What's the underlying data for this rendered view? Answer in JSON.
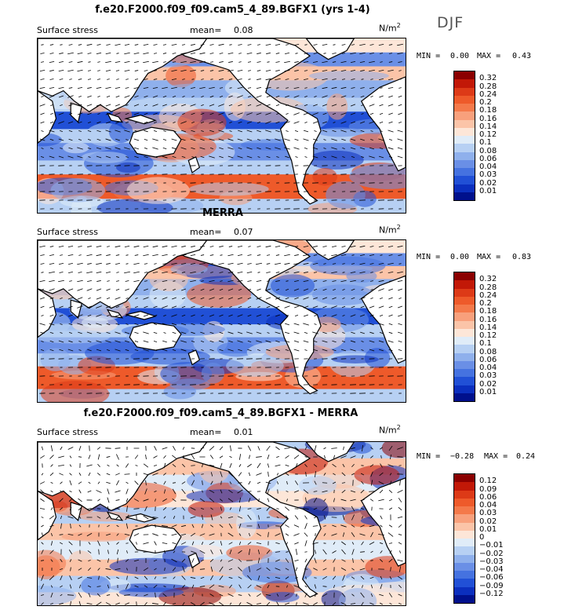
{
  "season": "DJF",
  "panels": [
    {
      "title": "f.e20.F2000.f09_f09.cam5_4_89.BGFX1 (yrs 1-4)",
      "variable": "Surface stress",
      "mean_label": "mean=",
      "mean": "0.08",
      "units": "N/m",
      "units_sup": "2",
      "min_label": "MIN =",
      "min": "0.00",
      "max_label": "MAX =",
      "max": "0.43",
      "levels": [
        "0.32",
        "0.28",
        "0.24",
        "0.2",
        "0.18",
        "0.16",
        "0.14",
        "0.12",
        "0.1",
        "0.08",
        "0.06",
        "0.04",
        "0.03",
        "0.02",
        "0.01"
      ],
      "colors": [
        "#8b0000",
        "#c21807",
        "#dd3a17",
        "#ee5a2a",
        "#f4794a",
        "#f8a07c",
        "#fbc4a8",
        "#fde6d8",
        "#e0ecf8",
        "#b7d0f3",
        "#8fb0ec",
        "#6a8fe6",
        "#4572e0",
        "#2150d6",
        "#0b2fbe",
        "#00108c"
      ]
    },
    {
      "title": "MERRA",
      "variable": "Surface stress",
      "mean_label": "mean=",
      "mean": "0.07",
      "units": "N/m",
      "units_sup": "2",
      "min_label": "MIN =",
      "min": "0.00",
      "max_label": "MAX =",
      "max": "0.83",
      "levels": [
        "0.32",
        "0.28",
        "0.24",
        "0.2",
        "0.18",
        "0.16",
        "0.14",
        "0.12",
        "0.1",
        "0.08",
        "0.06",
        "0.04",
        "0.03",
        "0.02",
        "0.01"
      ],
      "colors": [
        "#8b0000",
        "#c21807",
        "#dd3a17",
        "#ee5a2a",
        "#f4794a",
        "#f8a07c",
        "#fbc4a8",
        "#fde6d8",
        "#e0ecf8",
        "#b7d0f3",
        "#8fb0ec",
        "#6a8fe6",
        "#4572e0",
        "#2150d6",
        "#0b2fbe",
        "#00108c"
      ]
    },
    {
      "title": "f.e20.F2000.f09_f09.cam5_4_89.BGFX1 - MERRA",
      "variable": "Surface stress",
      "mean_label": "mean=",
      "mean": "0.01",
      "units": "N/m",
      "units_sup": "2",
      "min_label": "MIN =",
      "min": "−0.28",
      "max_label": "MAX =",
      "max": "0.24",
      "levels": [
        "0.12",
        "0.09",
        "0.06",
        "0.04",
        "0.03",
        "0.02",
        "0.01",
        "0",
        "−0.01",
        "−0.02",
        "−0.03",
        "−0.04",
        "−0.06",
        "−0.09",
        "−0.12"
      ],
      "colors": [
        "#8b0000",
        "#c21807",
        "#dd3a17",
        "#ee5a2a",
        "#f4794a",
        "#f8a07c",
        "#fbc4a8",
        "#fde6d8",
        "#e0ecf8",
        "#b7d0f3",
        "#8fb0ec",
        "#6a8fe6",
        "#4572e0",
        "#2150d6",
        "#0b2fbe",
        "#00108c"
      ]
    }
  ],
  "chart_data": [
    {
      "type": "heatmap",
      "title": "f.e20.F2000.f09_f09.cam5_4_89.BGFX1 (yrs 1-4)",
      "field": "Surface stress",
      "units": "N/m2",
      "mean": 0.08,
      "min": 0.0,
      "max": 0.43,
      "contour_levels": [
        0.01,
        0.02,
        0.03,
        0.04,
        0.06,
        0.08,
        0.1,
        0.12,
        0.14,
        0.16,
        0.18,
        0.2,
        0.24,
        0.28,
        0.32
      ],
      "season": "DJF",
      "overlay": "wind stress vectors"
    },
    {
      "type": "heatmap",
      "title": "MERRA",
      "field": "Surface stress",
      "units": "N/m2",
      "mean": 0.07,
      "min": 0.0,
      "max": 0.83,
      "contour_levels": [
        0.01,
        0.02,
        0.03,
        0.04,
        0.06,
        0.08,
        0.1,
        0.12,
        0.14,
        0.16,
        0.18,
        0.2,
        0.24,
        0.28,
        0.32
      ],
      "season": "DJF",
      "overlay": "wind stress vectors"
    },
    {
      "type": "heatmap",
      "title": "f.e20.F2000.f09_f09.cam5_4_89.BGFX1 - MERRA",
      "field": "Surface stress",
      "units": "N/m2",
      "mean": 0.01,
      "min": -0.28,
      "max": 0.24,
      "contour_levels": [
        -0.12,
        -0.09,
        -0.06,
        -0.04,
        -0.03,
        -0.02,
        -0.01,
        0,
        0.01,
        0.02,
        0.03,
        0.04,
        0.06,
        0.09,
        0.12
      ],
      "season": "DJF",
      "overlay": "wind stress vectors"
    }
  ]
}
